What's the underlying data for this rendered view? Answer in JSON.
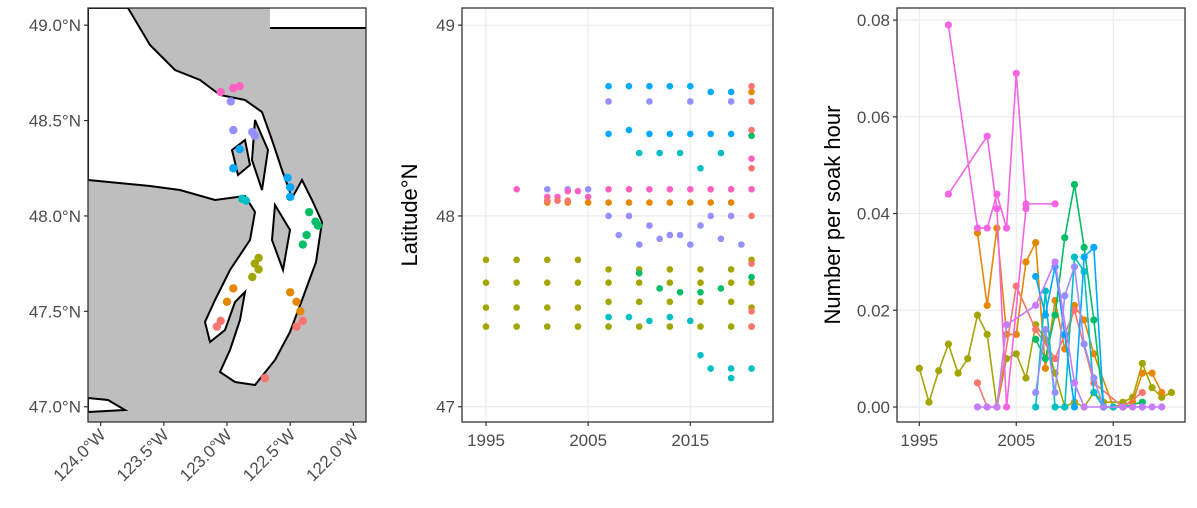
{
  "chart_data": [
    {
      "type": "map",
      "xlim": [
        -124.1,
        -121.9
      ],
      "ylim": [
        46.92,
        49.09
      ],
      "xticks": [
        {
          "value": -124,
          "label": "124.0°W"
        },
        {
          "value": -123.5,
          "label": "123.5°W"
        },
        {
          "value": -123,
          "label": "123.0°W"
        },
        {
          "value": -122.5,
          "label": "122.5°W"
        },
        {
          "value": -122,
          "label": "122.0°W"
        }
      ],
      "yticks": [
        {
          "value": 47,
          "label": "47.0°N"
        },
        {
          "value": 47.5,
          "label": "47.5°N"
        },
        {
          "value": 48,
          "label": "48.0°N"
        },
        {
          "value": 48.5,
          "label": "48.5°N"
        },
        {
          "value": 49,
          "label": "49.0°N"
        }
      ],
      "grid": false,
      "series": [
        {
          "color": "#FF61C3",
          "x": [
            -122.95,
            -123.05,
            -122.9
          ],
          "y": [
            48.67,
            48.65,
            48.68
          ]
        },
        {
          "color": "#9590FF",
          "x": [
            -122.97,
            -122.95,
            -122.78,
            -122.8
          ],
          "y": [
            48.6,
            48.45,
            48.42,
            48.44
          ]
        },
        {
          "color": "#00A9FF",
          "x": [
            -122.9,
            -122.95,
            -122.5,
            -122.52,
            -122.5
          ],
          "y": [
            48.35,
            48.25,
            48.15,
            48.2,
            48.1
          ]
        },
        {
          "color": "#00BFC4",
          "x": [
            -122.85,
            -122.88
          ],
          "y": [
            48.08,
            48.09
          ]
        },
        {
          "color": "#00BE67",
          "x": [
            -122.35,
            -122.3,
            -122.28,
            -122.37,
            -122.4
          ],
          "y": [
            48.02,
            47.97,
            47.95,
            47.9,
            47.85
          ]
        },
        {
          "color": "#A3A500",
          "x": [
            -122.75,
            -122.75,
            -122.8,
            -122.78
          ],
          "y": [
            47.78,
            47.72,
            47.68,
            47.75
          ]
        },
        {
          "color": "#E58700",
          "x": [
            -122.95,
            -123.0,
            -122.5,
            -122.45,
            -122.42
          ],
          "y": [
            47.62,
            47.55,
            47.6,
            47.55,
            47.5
          ]
        },
        {
          "color": "#F8766D",
          "x": [
            -123.05,
            -123.08,
            -122.4,
            -122.45,
            -122.7
          ],
          "y": [
            47.45,
            47.42,
            47.45,
            47.42,
            47.15
          ]
        }
      ]
    },
    {
      "type": "scatter",
      "ylabel": "Latitude°N",
      "xlim": [
        1992.65,
        2023.1
      ],
      "ylim": [
        46.92,
        49.09
      ],
      "xticks": [
        1995,
        2005,
        2015
      ],
      "yticks": [
        47,
        48,
        49
      ],
      "grid": true,
      "series": [
        {
          "color": "#A3A500",
          "x": [
            1995,
            1998,
            2001,
            2004,
            2007,
            2010,
            2013,
            2016,
            2019,
            2021,
            1995,
            1998,
            2001,
            2004,
            2007,
            2010,
            2013,
            2016,
            2019,
            2021,
            1995,
            1998,
            2001,
            2004,
            2007,
            2010,
            2013,
            2016,
            2019,
            2021,
            1995,
            1998,
            2001,
            2004,
            2007,
            2010,
            2013,
            2016,
            2019,
            2021
          ],
          "y": [
            47.77,
            47.77,
            47.77,
            47.77,
            47.72,
            47.72,
            47.72,
            47.72,
            47.72,
            47.77,
            47.65,
            47.65,
            47.65,
            47.65,
            47.65,
            47.65,
            47.65,
            47.65,
            47.65,
            47.65,
            47.52,
            47.52,
            47.52,
            47.52,
            47.55,
            47.55,
            47.55,
            47.55,
            47.55,
            47.52,
            47.42,
            47.42,
            47.42,
            47.42,
            47.42,
            47.42,
            47.42,
            47.42,
            47.42,
            47.42
          ]
        },
        {
          "color": "#00BFC4",
          "x": [
            2007,
            2009,
            2011,
            2013,
            2015,
            2010,
            2012,
            2014,
            2016,
            2018,
            2016,
            2017,
            2019,
            2019,
            2021
          ],
          "y": [
            47.47,
            47.47,
            47.45,
            47.47,
            47.45,
            48.33,
            48.33,
            48.33,
            48.25,
            48.33,
            47.27,
            47.2,
            47.15,
            47.2,
            47.2
          ]
        },
        {
          "color": "#00BE67",
          "x": [
            2010,
            2012,
            2014,
            2016,
            2018,
            2021,
            2021
          ],
          "y": [
            47.7,
            47.62,
            47.6,
            47.6,
            47.62,
            47.68,
            48.42
          ]
        },
        {
          "color": "#00A9FF",
          "x": [
            2007,
            2009,
            2011,
            2013,
            2015,
            2017,
            2019,
            2007,
            2009,
            2011,
            2013,
            2015,
            2017,
            2019
          ],
          "y": [
            48.68,
            48.68,
            48.68,
            48.68,
            48.68,
            48.65,
            48.65,
            48.43,
            48.45,
            48.43,
            48.43,
            48.43,
            48.43,
            48.43
          ]
        },
        {
          "color": "#9590FF",
          "x": [
            2001,
            2003,
            2005,
            2007,
            2009,
            2011,
            2013,
            2015,
            2017,
            2019,
            2008,
            2010,
            2012,
            2014,
            2016,
            2018,
            2020,
            2007,
            2011,
            2015,
            2019
          ],
          "y": [
            48.14,
            48.14,
            48.14,
            48.0,
            48.0,
            47.95,
            47.9,
            47.85,
            48.0,
            48.0,
            47.9,
            47.85,
            47.88,
            47.9,
            47.95,
            47.88,
            47.85,
            48.6,
            48.6,
            48.6,
            48.6
          ]
        },
        {
          "color": "#FF61C3",
          "x": [
            1998,
            2001,
            2002,
            2003,
            2004,
            2005,
            2007,
            2009,
            2011,
            2013,
            2015,
            2017,
            2019,
            2021,
            2021
          ],
          "y": [
            48.14,
            48.1,
            48.1,
            48.13,
            48.13,
            48.1,
            48.14,
            48.14,
            48.14,
            48.14,
            48.14,
            48.14,
            48.14,
            48.14,
            48.3
          ]
        },
        {
          "color": "#E58700",
          "x": [
            2001,
            2003,
            2005,
            2007,
            2009,
            2011,
            2013,
            2015,
            2017,
            2019,
            2021
          ],
          "y": [
            48.07,
            48.07,
            48.07,
            48.07,
            48.07,
            48.07,
            48.07,
            48.07,
            48.07,
            48.07,
            48.65
          ]
        },
        {
          "color": "#F8766D",
          "x": [
            2001,
            2002,
            2003,
            2021,
            2021,
            2021,
            2021,
            2021,
            2021,
            2021,
            2021
          ],
          "y": [
            48.08,
            48.08,
            48.08,
            48.68,
            48.6,
            48.45,
            48.25,
            48.0,
            47.75,
            47.5,
            47.42
          ]
        }
      ]
    },
    {
      "type": "line",
      "ylabel": "Number per soak hour",
      "xlim": [
        1992.7,
        2022.4
      ],
      "ylim": [
        -0.0031,
        0.0825
      ],
      "xticks": [
        1995,
        2005,
        2015
      ],
      "yticks": [
        {
          "value": 0,
          "label": "0.00"
        },
        0.02,
        0.04,
        0.06,
        0.08
      ],
      "grid": true,
      "series": [
        {
          "color": "#A3A500",
          "x": [
            1995,
            1996,
            1997,
            1998,
            1999,
            2000,
            2001,
            2002,
            2003,
            2004,
            2005,
            2006,
            2007,
            2008,
            2009,
            2010,
            2011,
            2012,
            2013,
            2014,
            2016,
            2017,
            2018,
            2019,
            2020,
            2021
          ],
          "values": [
            0.008,
            0.001,
            0.0075,
            0.013,
            0.007,
            0.01,
            0.019,
            0.015,
            0,
            0.01,
            0.011,
            0.006,
            0.017,
            0.014,
            0.007,
            0,
            0.001,
            0,
            0.003,
            0.001,
            0.001,
            0.002,
            0.009,
            0.004,
            0.002,
            0.003
          ]
        },
        {
          "color": "#E58700",
          "x": [
            2001,
            2002,
            2003,
            2004,
            2005,
            2006,
            2007,
            2008,
            2009,
            2010,
            2011,
            2012,
            2013,
            2015,
            2017,
            2018,
            2019,
            2020
          ],
          "values": [
            0.036,
            0.021,
            0.037,
            0.015,
            0.015,
            0.03,
            0.034,
            0.008,
            0.022,
            0.012,
            0.021,
            0.018,
            0.011,
            0,
            0.001,
            0.007,
            0.007,
            0.003
          ]
        },
        {
          "color": "#F8766D",
          "x": [
            2001,
            2002,
            2003,
            2005,
            2007,
            2009,
            2011,
            2013,
            2016,
            2018
          ],
          "values": [
            0.005,
            0,
            0,
            0.025,
            0.016,
            0.01,
            0.02,
            0.005,
            0,
            0.003
          ]
        },
        {
          "color": "#00BE67",
          "x": [
            2007,
            2008,
            2009,
            2010,
            2011,
            2012,
            2013,
            2014,
            2016,
            2018
          ],
          "values": [
            0.014,
            0.01,
            0.019,
            0.035,
            0.046,
            0.033,
            0.018,
            0,
            0,
            0.001
          ]
        },
        {
          "color": "#00BFC4",
          "x": [
            2007,
            2008,
            2009,
            2010,
            2011,
            2012,
            2013,
            2014,
            2015
          ],
          "values": [
            0,
            0.024,
            0,
            0,
            0.031,
            0.028,
            0.003,
            0,
            0
          ]
        },
        {
          "color": "#00A9FF",
          "x": [
            2007,
            2008,
            2009,
            2010,
            2011,
            2012,
            2013,
            2014,
            2016
          ],
          "values": [
            0.027,
            0.019,
            0.029,
            0.015,
            0,
            0.031,
            0.033,
            0,
            0
          ]
        },
        {
          "color": "#9590FF",
          "x": [
            2007,
            2008,
            2009,
            2010,
            2011,
            2012,
            2013,
            2014,
            2016,
            2018
          ],
          "values": [
            0.003,
            0.016,
            0.003,
            0.023,
            0.029,
            0.013,
            0.006,
            0,
            0,
            0
          ]
        },
        {
          "color": "#C77CFF",
          "x": [
            2001,
            2002,
            2003,
            2004,
            2007,
            2009,
            2011,
            2012,
            2016,
            2017,
            2018,
            2019,
            2020
          ],
          "values": [
            0,
            0,
            0,
            0.017,
            0.021,
            0.03,
            0.005,
            0,
            0,
            0,
            0,
            0,
            0
          ]
        },
        {
          "color": "#F564E3",
          "x": [
            1998,
            2001,
            2002,
            2003,
            2004,
            2005,
            2006,
            2009
          ],
          "values": [
            0.079,
            0.037,
            0.037,
            0.044,
            0.037,
            0.069,
            0.042,
            0.042
          ]
        },
        {
          "color": "#F564E3",
          "x": [
            1998,
            2002,
            2003,
            2004,
            2006
          ],
          "values": [
            0.044,
            0.056,
            0.041,
            0.0,
            0.041
          ]
        }
      ]
    }
  ]
}
